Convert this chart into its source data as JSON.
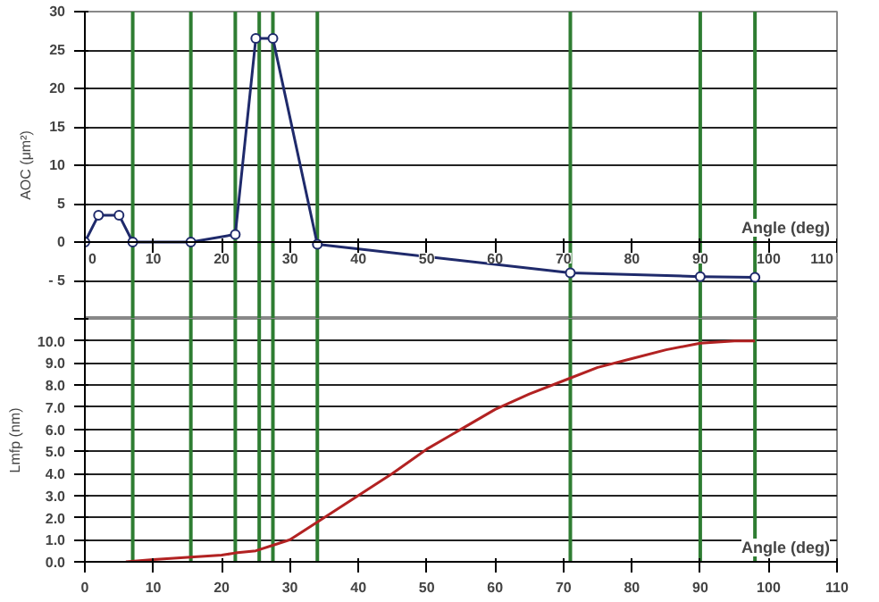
{
  "chart_data": [
    {
      "type": "line",
      "ylabel": "AOC (μm²)",
      "xlabel": "Angle (deg)",
      "xlim": [
        0,
        110
      ],
      "ylim": [
        -10,
        30
      ],
      "xticks": [
        0,
        10,
        20,
        30,
        40,
        50,
        60,
        70,
        80,
        90,
        100,
        110
      ],
      "yticks": [
        {
          "value": -10,
          "label": null
        },
        {
          "value": -5,
          "label": "- 5"
        },
        0,
        5,
        10,
        15,
        20,
        25,
        30
      ],
      "grid": "y",
      "marker": "circle",
      "series": [
        {
          "color": "#1f2a6b",
          "x": [
            0,
            2,
            5,
            7,
            15.5,
            22,
            25,
            27.5,
            34,
            71,
            90,
            98
          ],
          "values": [
            0,
            3.5,
            3.5,
            0,
            0,
            1,
            26.5,
            26.5,
            -0.3,
            -4,
            -4.5,
            -4.6
          ]
        }
      ],
      "ref_lines": [
        {
          "axis": "x",
          "value": 7,
          "color": "#2e7d32"
        },
        {
          "axis": "x",
          "value": 15.5,
          "color": "#2e7d32"
        },
        {
          "axis": "x",
          "value": 22,
          "color": "#2e7d32"
        },
        {
          "axis": "x",
          "value": 25.5,
          "color": "#2e7d32"
        },
        {
          "axis": "x",
          "value": 27.5,
          "color": "#2e7d32"
        },
        {
          "axis": "x",
          "value": 34,
          "color": "#2e7d32"
        },
        {
          "axis": "x",
          "value": 71,
          "color": "#2e7d32"
        },
        {
          "axis": "x",
          "value": 90,
          "color": "#2e7d32"
        },
        {
          "axis": "x",
          "value": 98,
          "color": "#2e7d32"
        }
      ]
    },
    {
      "type": "line",
      "ylabel": "Lmfp (nm)",
      "xlabel": "Angle (deg)",
      "xlim": [
        0,
        110
      ],
      "ylim": [
        0,
        11
      ],
      "xticks": [
        0,
        10,
        20,
        30,
        40,
        50,
        60,
        70,
        80,
        90,
        100,
        110
      ],
      "yticks": [
        {
          "value": 0,
          "label": "0.0"
        },
        {
          "value": 1,
          "label": "1.0"
        },
        {
          "value": 2,
          "label": "2.0"
        },
        {
          "value": 3,
          "label": "3.0"
        },
        {
          "value": 4,
          "label": "4.0"
        },
        {
          "value": 5,
          "label": "5.0"
        },
        {
          "value": 6,
          "label": "6.0"
        },
        {
          "value": 7,
          "label": "7.0"
        },
        {
          "value": 8,
          "label": "8.0"
        },
        {
          "value": 9,
          "label": "9.0"
        },
        {
          "value": 10,
          "label": "10.0"
        },
        {
          "value": 11,
          "label": null
        }
      ],
      "grid": "y",
      "series": [
        {
          "color": "#b22222",
          "x": [
            6,
            10,
            15,
            20,
            22,
            25,
            28,
            30,
            34,
            40,
            45,
            50,
            55,
            60,
            65,
            70,
            75,
            80,
            85,
            90,
            95,
            98
          ],
          "values": [
            0,
            0.1,
            0.2,
            0.3,
            0.4,
            0.5,
            0.8,
            1.0,
            1.8,
            3.0,
            4.0,
            5.1,
            6.0,
            6.9,
            7.6,
            8.2,
            8.8,
            9.2,
            9.6,
            9.9,
            10.0,
            10.0
          ]
        }
      ],
      "ref_lines": [
        {
          "axis": "x",
          "value": 7,
          "color": "#2e7d32"
        },
        {
          "axis": "x",
          "value": 15.5,
          "color": "#2e7d32"
        },
        {
          "axis": "x",
          "value": 22,
          "color": "#2e7d32"
        },
        {
          "axis": "x",
          "value": 25.5,
          "color": "#2e7d32"
        },
        {
          "axis": "x",
          "value": 27.5,
          "color": "#2e7d32"
        },
        {
          "axis": "x",
          "value": 34,
          "color": "#2e7d32"
        },
        {
          "axis": "x",
          "value": 71,
          "color": "#2e7d32"
        },
        {
          "axis": "x",
          "value": 90,
          "color": "#2e7d32"
        },
        {
          "axis": "x",
          "value": 98,
          "color": "#2e7d32"
        }
      ]
    }
  ]
}
